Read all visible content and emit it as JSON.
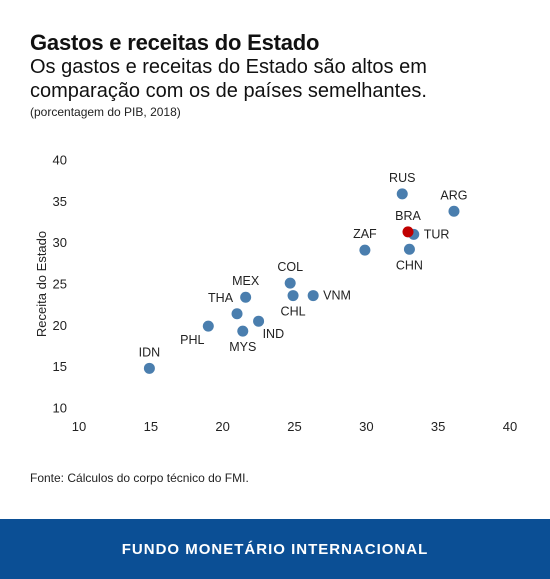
{
  "header": {
    "title": "Gastos e receitas do Estado",
    "subtitle": "Os gastos e receitas do Estado são altos em comparação com os de países semelhantes.",
    "note": "(porcentagem do PIB, 2018)"
  },
  "source": "Fonte: Cálculos do corpo técnico do FMI.",
  "footer": {
    "brand": "FUNDO MONETÁRIO INTERNACIONAL"
  },
  "colors": {
    "point": "#4a7eae",
    "highlight": "#c00000",
    "footer_bg": "#0b4f95"
  },
  "chart_data": {
    "type": "scatter",
    "title": "",
    "xlabel": "",
    "ylabel": "Receita do Estado",
    "xlim": [
      10,
      40
    ],
    "ylim": [
      10,
      40
    ],
    "xticks": [
      10,
      15,
      20,
      25,
      30,
      35,
      40
    ],
    "yticks": [
      10,
      15,
      20,
      25,
      30,
      35,
      40
    ],
    "grid": false,
    "points": [
      {
        "label": "IDN",
        "x": 14.9,
        "y": 14.8,
        "label_pos": "above"
      },
      {
        "label": "PHL",
        "x": 19.0,
        "y": 19.9,
        "label_pos": "below-left"
      },
      {
        "label": "THA",
        "x": 21.0,
        "y": 21.4,
        "label_pos": "above-left"
      },
      {
        "label": "MYS",
        "x": 21.4,
        "y": 19.3,
        "label_pos": "below"
      },
      {
        "label": "MEX",
        "x": 21.6,
        "y": 23.4,
        "label_pos": "above"
      },
      {
        "label": "IND",
        "x": 22.5,
        "y": 20.5,
        "label_pos": "below-right"
      },
      {
        "label": "COL",
        "x": 24.7,
        "y": 25.1,
        "label_pos": "above"
      },
      {
        "label": "CHL",
        "x": 24.9,
        "y": 23.6,
        "label_pos": "below"
      },
      {
        "label": "VNM",
        "x": 26.3,
        "y": 23.6,
        "label_pos": "right"
      },
      {
        "label": "ZAF",
        "x": 29.9,
        "y": 29.1,
        "label_pos": "above"
      },
      {
        "label": "RUS",
        "x": 32.5,
        "y": 35.9,
        "label_pos": "above"
      },
      {
        "label": "TUR",
        "x": 33.3,
        "y": 31.0,
        "label_pos": "right"
      },
      {
        "label": "CHN",
        "x": 33.0,
        "y": 29.2,
        "label_pos": "below"
      },
      {
        "label": "BRA",
        "x": 32.9,
        "y": 31.3,
        "label_pos": "above",
        "highlight": true
      },
      {
        "label": "ARG",
        "x": 36.1,
        "y": 33.8,
        "label_pos": "above"
      }
    ]
  }
}
